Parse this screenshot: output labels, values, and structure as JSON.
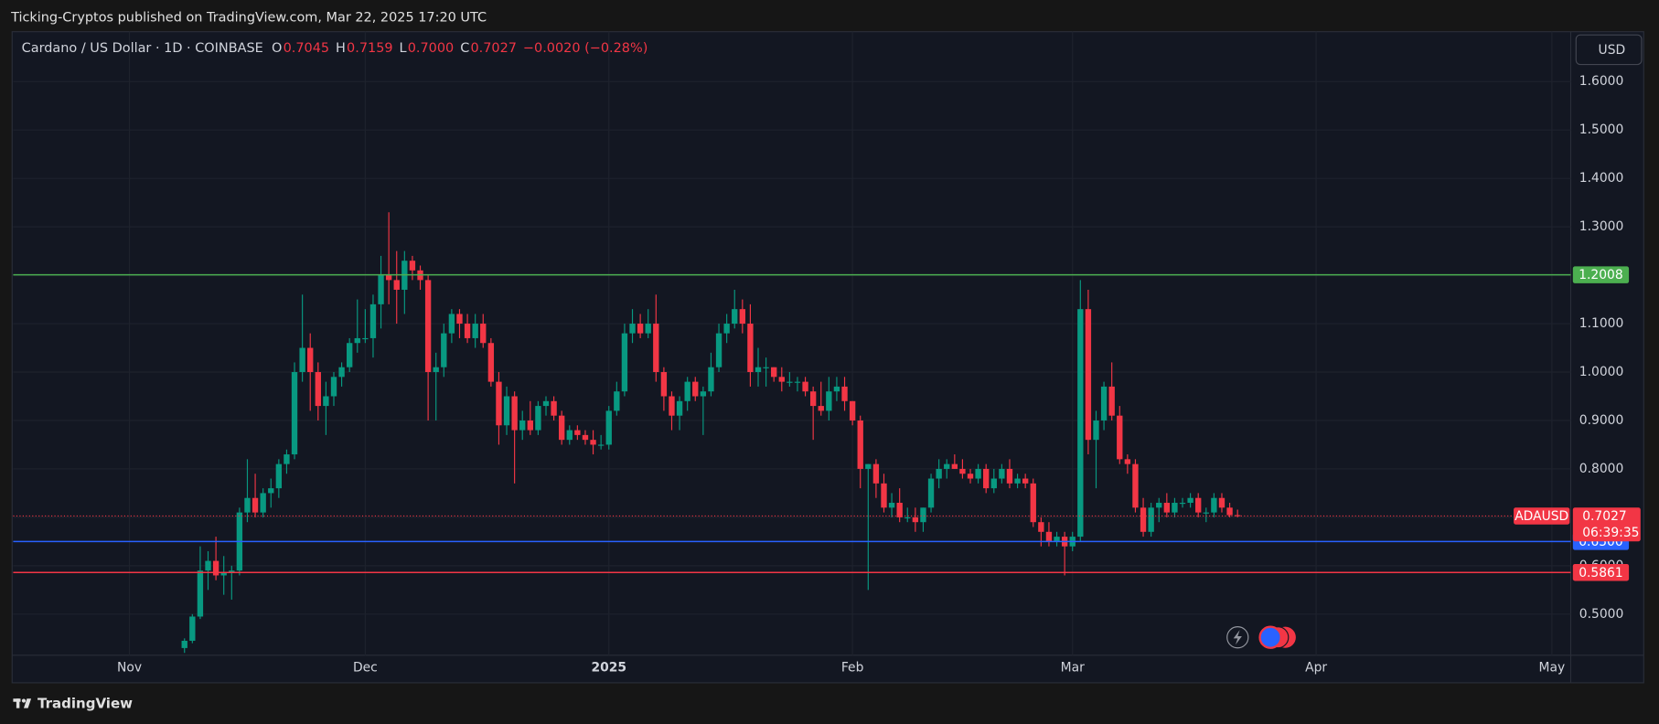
{
  "header": "Ticking-Cryptos published on TradingView.com, Mar 22, 2025 17:20 UTC",
  "footer": "TradingView",
  "chart_data": {
    "type": "candlestick",
    "symbol_line": "Cardano / US Dollar · 1D · COINBASE",
    "ohlc_labels": [
      {
        "key": "O",
        "text": "0.7045"
      },
      {
        "key": "H",
        "text": "0.7159"
      },
      {
        "key": "L",
        "text": "0.7000"
      },
      {
        "key": "C",
        "text": "0.7027"
      }
    ],
    "change": "−0.0020 (−0.28%)",
    "currency": "USD",
    "up_color": "#089981",
    "down_color": "#f23645",
    "ylim": [
      0.415,
      1.703
    ],
    "yticks": [
      {
        "value": 0.5,
        "label": "0.5000"
      },
      {
        "value": 0.6,
        "label": "0.6000"
      },
      {
        "value": 0.7,
        "label": "0.7000"
      },
      {
        "value": 0.8,
        "label": "0.8000"
      },
      {
        "value": 0.9,
        "label": "0.9000"
      },
      {
        "value": 1.0,
        "label": "1.0000"
      },
      {
        "value": 1.1,
        "label": "1.1000"
      },
      {
        "value": 1.2,
        "label": "1.2000"
      },
      {
        "value": 1.3,
        "label": "1.3000"
      },
      {
        "value": 1.4,
        "label": "1.4000"
      },
      {
        "value": 1.5,
        "label": "1.5000"
      },
      {
        "value": 1.6,
        "label": "1.6000"
      }
    ],
    "xlim": [
      -21.8,
      176.4
    ],
    "xticks": [
      {
        "value": -7,
        "label": "Nov"
      },
      {
        "value": 23,
        "label": "Dec"
      },
      {
        "value": 54,
        "label": "2025"
      },
      {
        "value": 85,
        "label": "Feb"
      },
      {
        "value": 113,
        "label": "Mar"
      },
      {
        "value": 144,
        "label": "Apr"
      },
      {
        "value": 174,
        "label": "May"
      }
    ],
    "grid": true,
    "levels": [
      {
        "value": 1.2008,
        "label": "1.2008",
        "color": "#4caf50"
      },
      {
        "value": 0.65,
        "label": "0.6500",
        "color": "#2962ff"
      },
      {
        "value": 0.5861,
        "label": "0.5861",
        "color": "#f23645"
      }
    ],
    "last_price": {
      "symbol": "ADAUSD",
      "label": "0.7027",
      "countdown": "06:39:35"
    },
    "ohlc": [
      [
        0.43,
        0.45,
        0.42,
        0.445
      ],
      [
        0.445,
        0.5,
        0.44,
        0.495
      ],
      [
        0.495,
        0.64,
        0.49,
        0.59
      ],
      [
        0.59,
        0.63,
        0.55,
        0.61
      ],
      [
        0.61,
        0.66,
        0.57,
        0.58
      ],
      [
        0.58,
        0.62,
        0.54,
        0.585
      ],
      [
        0.585,
        0.6,
        0.53,
        0.59
      ],
      [
        0.59,
        0.72,
        0.58,
        0.71
      ],
      [
        0.71,
        0.82,
        0.69,
        0.74
      ],
      [
        0.74,
        0.79,
        0.7,
        0.71
      ],
      [
        0.71,
        0.76,
        0.7,
        0.75
      ],
      [
        0.75,
        0.78,
        0.72,
        0.76
      ],
      [
        0.76,
        0.82,
        0.74,
        0.81
      ],
      [
        0.81,
        0.84,
        0.79,
        0.83
      ],
      [
        0.83,
        1.02,
        0.82,
        1.0
      ],
      [
        1.0,
        1.16,
        0.98,
        1.05
      ],
      [
        1.05,
        1.08,
        0.92,
        1.0
      ],
      [
        1.0,
        1.02,
        0.9,
        0.93
      ],
      [
        0.93,
        0.98,
        0.87,
        0.95
      ],
      [
        0.95,
        1.0,
        0.93,
        0.99
      ],
      [
        0.99,
        1.02,
        0.97,
        1.01
      ],
      [
        1.01,
        1.07,
        1.0,
        1.06
      ],
      [
        1.06,
        1.15,
        1.04,
        1.07
      ],
      [
        1.07,
        1.13,
        1.06,
        1.07
      ],
      [
        1.07,
        1.16,
        1.03,
        1.14
      ],
      [
        1.14,
        1.24,
        1.09,
        1.2
      ],
      [
        1.2,
        1.33,
        1.14,
        1.19
      ],
      [
        1.19,
        1.25,
        1.1,
        1.17
      ],
      [
        1.17,
        1.25,
        1.12,
        1.23
      ],
      [
        1.23,
        1.24,
        1.19,
        1.21
      ],
      [
        1.21,
        1.22,
        1.17,
        1.19
      ],
      [
        1.19,
        1.2,
        0.9,
        1.0
      ],
      [
        1.0,
        1.04,
        0.9,
        1.01
      ],
      [
        1.01,
        1.1,
        0.99,
        1.08
      ],
      [
        1.08,
        1.13,
        1.06,
        1.12
      ],
      [
        1.12,
        1.13,
        1.07,
        1.1
      ],
      [
        1.1,
        1.12,
        1.06,
        1.07
      ],
      [
        1.07,
        1.12,
        1.05,
        1.1
      ],
      [
        1.1,
        1.12,
        1.05,
        1.06
      ],
      [
        1.06,
        1.07,
        0.97,
        0.98
      ],
      [
        0.98,
        1.0,
        0.85,
        0.89
      ],
      [
        0.89,
        0.97,
        0.87,
        0.95
      ],
      [
        0.95,
        0.96,
        0.77,
        0.88
      ],
      [
        0.88,
        0.92,
        0.86,
        0.9
      ],
      [
        0.9,
        0.94,
        0.87,
        0.88
      ],
      [
        0.88,
        0.94,
        0.87,
        0.93
      ],
      [
        0.93,
        0.95,
        0.91,
        0.94
      ],
      [
        0.94,
        0.95,
        0.9,
        0.91
      ],
      [
        0.91,
        0.92,
        0.85,
        0.86
      ],
      [
        0.86,
        0.89,
        0.85,
        0.88
      ],
      [
        0.88,
        0.89,
        0.86,
        0.87
      ],
      [
        0.87,
        0.88,
        0.85,
        0.86
      ],
      [
        0.86,
        0.88,
        0.83,
        0.85
      ],
      [
        0.85,
        0.87,
        0.84,
        0.85
      ],
      [
        0.85,
        0.93,
        0.84,
        0.92
      ],
      [
        0.92,
        0.98,
        0.91,
        0.96
      ],
      [
        0.96,
        1.1,
        0.95,
        1.08
      ],
      [
        1.08,
        1.13,
        1.06,
        1.1
      ],
      [
        1.1,
        1.12,
        1.07,
        1.08
      ],
      [
        1.08,
        1.13,
        1.07,
        1.1
      ],
      [
        1.1,
        1.16,
        0.98,
        1.0
      ],
      [
        1.0,
        1.01,
        0.92,
        0.95
      ],
      [
        0.95,
        0.96,
        0.88,
        0.91
      ],
      [
        0.91,
        0.95,
        0.88,
        0.94
      ],
      [
        0.94,
        0.99,
        0.92,
        0.98
      ],
      [
        0.98,
        0.99,
        0.94,
        0.95
      ],
      [
        0.95,
        0.97,
        0.87,
        0.96
      ],
      [
        0.96,
        1.04,
        0.95,
        1.01
      ],
      [
        1.01,
        1.1,
        1.0,
        1.08
      ],
      [
        1.08,
        1.12,
        1.06,
        1.1
      ],
      [
        1.1,
        1.17,
        1.09,
        1.13
      ],
      [
        1.13,
        1.15,
        1.08,
        1.1
      ],
      [
        1.1,
        1.14,
        0.97,
        1.0
      ],
      [
        1.0,
        1.05,
        0.97,
        1.01
      ],
      [
        1.01,
        1.03,
        0.97,
        1.01
      ],
      [
        1.01,
        1.01,
        0.98,
        0.99
      ],
      [
        0.99,
        1.01,
        0.96,
        0.98
      ],
      [
        0.98,
        1.0,
        0.97,
        0.98
      ],
      [
        0.98,
        0.99,
        0.96,
        0.98
      ],
      [
        0.98,
        0.99,
        0.95,
        0.96
      ],
      [
        0.96,
        0.97,
        0.86,
        0.93
      ],
      [
        0.93,
        0.98,
        0.91,
        0.92
      ],
      [
        0.92,
        0.99,
        0.9,
        0.96
      ],
      [
        0.96,
        0.99,
        0.94,
        0.97
      ],
      [
        0.97,
        0.99,
        0.92,
        0.94
      ],
      [
        0.94,
        0.94,
        0.89,
        0.9
      ],
      [
        0.9,
        0.91,
        0.76,
        0.8
      ],
      [
        0.8,
        0.81,
        0.55,
        0.81
      ],
      [
        0.81,
        0.82,
        0.74,
        0.77
      ],
      [
        0.77,
        0.79,
        0.71,
        0.72
      ],
      [
        0.72,
        0.75,
        0.7,
        0.73
      ],
      [
        0.73,
        0.76,
        0.69,
        0.7
      ],
      [
        0.7,
        0.72,
        0.69,
        0.7
      ],
      [
        0.7,
        0.72,
        0.67,
        0.69
      ],
      [
        0.69,
        0.72,
        0.67,
        0.72
      ],
      [
        0.72,
        0.79,
        0.71,
        0.78
      ],
      [
        0.78,
        0.82,
        0.76,
        0.8
      ],
      [
        0.8,
        0.82,
        0.78,
        0.81
      ],
      [
        0.81,
        0.83,
        0.8,
        0.8
      ],
      [
        0.8,
        0.82,
        0.78,
        0.79
      ],
      [
        0.79,
        0.8,
        0.77,
        0.78
      ],
      [
        0.78,
        0.81,
        0.77,
        0.8
      ],
      [
        0.8,
        0.81,
        0.75,
        0.76
      ],
      [
        0.76,
        0.8,
        0.75,
        0.78
      ],
      [
        0.78,
        0.81,
        0.77,
        0.8
      ],
      [
        0.8,
        0.82,
        0.76,
        0.77
      ],
      [
        0.77,
        0.79,
        0.76,
        0.78
      ],
      [
        0.78,
        0.79,
        0.76,
        0.77
      ],
      [
        0.77,
        0.78,
        0.68,
        0.69
      ],
      [
        0.69,
        0.7,
        0.64,
        0.67
      ],
      [
        0.67,
        0.69,
        0.64,
        0.65
      ],
      [
        0.65,
        0.67,
        0.64,
        0.66
      ],
      [
        0.66,
        0.67,
        0.58,
        0.64
      ],
      [
        0.64,
        0.67,
        0.63,
        0.66
      ],
      [
        0.66,
        1.19,
        0.65,
        1.13
      ],
      [
        1.13,
        1.17,
        0.83,
        0.86
      ],
      [
        0.86,
        0.92,
        0.76,
        0.9
      ],
      [
        0.9,
        0.98,
        0.88,
        0.97
      ],
      [
        0.97,
        1.02,
        0.9,
        0.91
      ],
      [
        0.91,
        0.93,
        0.81,
        0.82
      ],
      [
        0.82,
        0.83,
        0.79,
        0.81
      ],
      [
        0.81,
        0.82,
        0.71,
        0.72
      ],
      [
        0.72,
        0.74,
        0.66,
        0.67
      ],
      [
        0.67,
        0.73,
        0.66,
        0.72
      ],
      [
        0.72,
        0.74,
        0.69,
        0.73
      ],
      [
        0.73,
        0.75,
        0.7,
        0.71
      ],
      [
        0.71,
        0.74,
        0.7,
        0.73
      ],
      [
        0.73,
        0.74,
        0.72,
        0.73
      ],
      [
        0.73,
        0.75,
        0.72,
        0.74
      ],
      [
        0.74,
        0.75,
        0.7,
        0.71
      ],
      [
        0.71,
        0.72,
        0.69,
        0.71
      ],
      [
        0.71,
        0.75,
        0.7,
        0.74
      ],
      [
        0.74,
        0.75,
        0.71,
        0.72
      ],
      [
        0.72,
        0.73,
        0.7,
        0.7045
      ],
      [
        0.7045,
        0.7159,
        0.7,
        0.7027
      ]
    ]
  }
}
